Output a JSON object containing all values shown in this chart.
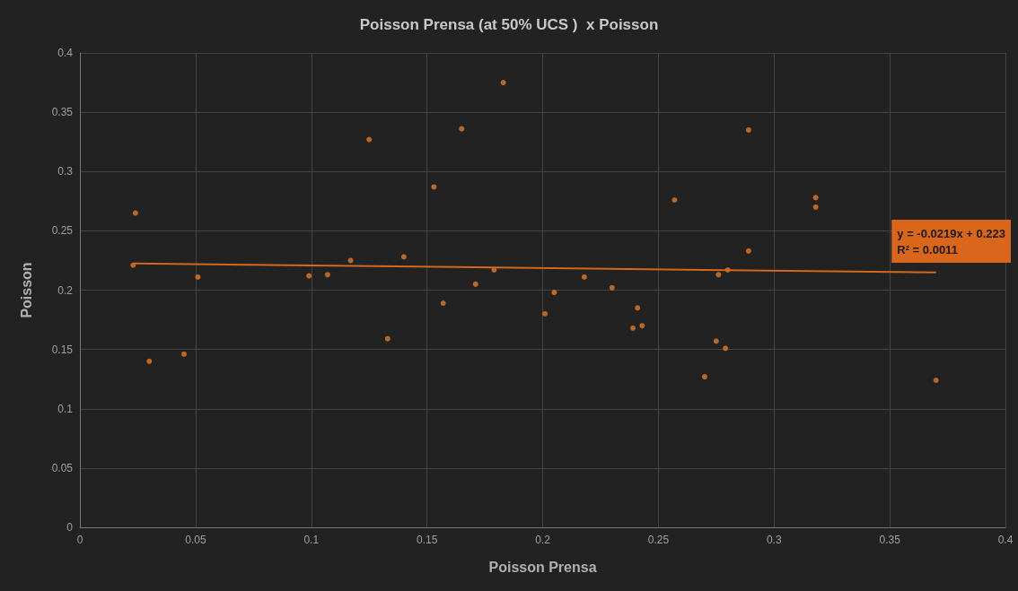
{
  "chart_data": {
    "type": "scatter",
    "title": "Poisson Prensa (at 50% UCS )  x Poisson",
    "xlabel": "Poisson Prensa",
    "ylabel": "Poisson",
    "xlim": [
      0,
      0.4
    ],
    "xticks": [
      0,
      0.05,
      0.1,
      0.15,
      0.2,
      0.25,
      0.3,
      0.35,
      0.4
    ],
    "ylim": [
      0,
      0.4
    ],
    "yticks": [
      0,
      0.05,
      0.1,
      0.15,
      0.2,
      0.25,
      0.3,
      0.35,
      0.4
    ],
    "grid": true,
    "marker": "circle",
    "annotations": [
      "y = -0.0219x + 0.223\nR² = 0.0011"
    ],
    "series": [
      {
        "color": "#e07a2a",
        "x": [
          0.024,
          0.023,
          0.03,
          0.045,
          0.051,
          0.099,
          0.107,
          0.117,
          0.125,
          0.133,
          0.14,
          0.153,
          0.157,
          0.165,
          0.171,
          0.179,
          0.183,
          0.201,
          0.205,
          0.218,
          0.23,
          0.239,
          0.241,
          0.243,
          0.257,
          0.27,
          0.275,
          0.276,
          0.279,
          0.28,
          0.289,
          0.289,
          0.318,
          0.318,
          0.37
        ],
        "values": [
          0.265,
          0.221,
          0.14,
          0.146,
          0.211,
          0.212,
          0.213,
          0.225,
          0.327,
          0.159,
          0.228,
          0.287,
          0.189,
          0.336,
          0.205,
          0.217,
          0.375,
          0.18,
          0.198,
          0.211,
          0.202,
          0.168,
          0.185,
          0.17,
          0.276,
          0.127,
          0.157,
          0.213,
          0.151,
          0.217,
          0.335,
          0.233,
          0.278,
          0.27,
          0.124
        ]
      },
      {
        "type": "line",
        "color": "#d2691e",
        "line_style": "solid",
        "marker": "none",
        "x": [
          0.023,
          0.37
        ],
        "values": [
          0.2225,
          0.2149
        ]
      }
    ]
  }
}
